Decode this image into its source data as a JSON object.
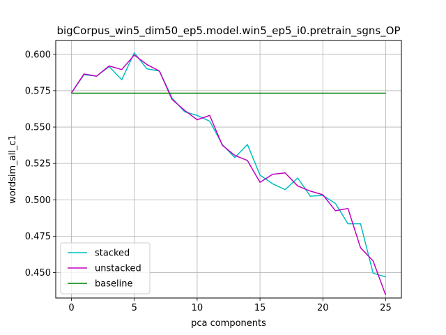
{
  "chart_data": {
    "type": "line",
    "title": "bigCorpus_win5_dim50_ep5.model.win5_ep5_i0.pretrain_sgns_OP",
    "xlabel": "pca components",
    "ylabel": "wordsim_all_c1",
    "xlim": [
      -1.25,
      26.25
    ],
    "ylim": [
      0.4325,
      0.6095
    ],
    "xticks": [
      0,
      5,
      10,
      15,
      20,
      25
    ],
    "yticks": [
      0.45,
      0.475,
      0.5,
      0.525,
      0.55,
      0.575,
      0.6
    ],
    "xtick_labels": [
      "0",
      "5",
      "10",
      "15",
      "20",
      "25"
    ],
    "ytick_labels": [
      "0.450",
      "0.475",
      "0.500",
      "0.525",
      "0.550",
      "0.575",
      "0.600"
    ],
    "grid": true,
    "legend_position": "lower-left",
    "x": [
      0,
      1,
      2,
      3,
      4,
      5,
      6,
      7,
      8,
      9,
      10,
      11,
      12,
      13,
      14,
      15,
      16,
      17,
      18,
      19,
      20,
      21,
      22,
      23,
      24,
      25
    ],
    "series": [
      {
        "name": "stacked",
        "color": "#00bfbf",
        "values": [
          0.5735,
          0.586,
          0.585,
          0.5915,
          0.5825,
          0.601,
          0.59,
          0.5885,
          0.57,
          0.5605,
          0.558,
          0.554,
          0.538,
          0.529,
          0.538,
          0.517,
          0.511,
          0.507,
          0.515,
          0.5025,
          0.503,
          0.4975,
          0.4835,
          0.4835,
          0.4495,
          0.447
        ]
      },
      {
        "name": "unstacked",
        "color": "#bf00bf",
        "values": [
          0.5735,
          0.5865,
          0.585,
          0.592,
          0.5895,
          0.5995,
          0.593,
          0.5885,
          0.569,
          0.5615,
          0.555,
          0.558,
          0.5375,
          0.5305,
          0.527,
          0.512,
          0.5175,
          0.5185,
          0.5095,
          0.506,
          0.5035,
          0.4925,
          0.494,
          0.467,
          0.458,
          0.4345
        ]
      },
      {
        "name": "baseline",
        "color": "#008000",
        "values": [
          0.5733,
          0.5733,
          0.5733,
          0.5733,
          0.5733,
          0.5733,
          0.5733,
          0.5733,
          0.5733,
          0.5733,
          0.5733,
          0.5733,
          0.5733,
          0.5733,
          0.5733,
          0.5733,
          0.5733,
          0.5733,
          0.5733,
          0.5733,
          0.5733,
          0.5733,
          0.5733,
          0.5733,
          0.5733,
          0.5733
        ]
      }
    ]
  }
}
